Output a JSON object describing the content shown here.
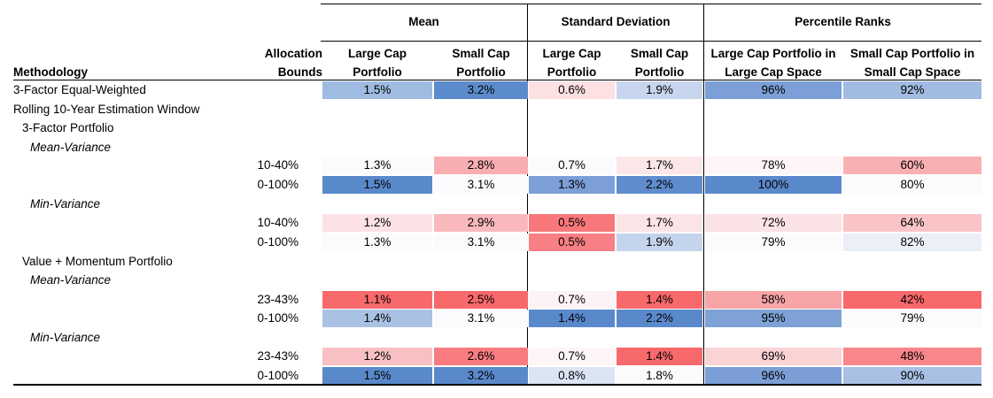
{
  "header": {
    "groups": [
      {
        "id": "mean",
        "label": "Mean"
      },
      {
        "id": "sd",
        "label": "Standard Deviation"
      },
      {
        "id": "pr",
        "label": "Percentile Ranks"
      }
    ],
    "methodology": "Methodology",
    "bounds_line1": "Allocation",
    "bounds_line2": "Bounds",
    "columns": [
      {
        "line1": "Large Cap",
        "line2": "Portfolio"
      },
      {
        "line1": "Small Cap",
        "line2": "Portfolio"
      },
      {
        "line1": "Large Cap",
        "line2": "Portfolio"
      },
      {
        "line1": "Small Cap",
        "line2": "Portfolio"
      },
      {
        "line1": "Large Cap Portfolio in",
        "line2": "Large Cap Space"
      },
      {
        "line1": "Small Cap Portfolio in",
        "line2": "Small Cap Space"
      }
    ]
  },
  "rows": [
    {
      "type": "data",
      "label": "3-Factor Equal-Weighted",
      "indent": 0,
      "bounds": "",
      "values": [
        "1.5%",
        "3.2%",
        "0.6%",
        "1.9%",
        "96%",
        "92%"
      ],
      "colors": [
        "#9fbbe1",
        "#5c8bcc",
        "#fce0e2",
        "#c7d6ee",
        "#7b9fd6",
        "#a1bbe2"
      ]
    },
    {
      "type": "label",
      "label": "Rolling 10-Year Estimation Window",
      "indent": 0,
      "italic": false
    },
    {
      "type": "label",
      "label": "3-Factor Portfolio",
      "indent": 1,
      "italic": false
    },
    {
      "type": "label",
      "label": "Mean-Variance",
      "indent": 2,
      "italic": true
    },
    {
      "type": "data",
      "label": "",
      "indent": 0,
      "bounds": "10-40%",
      "values": [
        "1.3%",
        "2.8%",
        "0.7%",
        "1.7%",
        "78%",
        "60%"
      ],
      "colors": [
        "#fafbfd",
        "#f8aeb1",
        "#fbfbfd",
        "#fbe6e8",
        "#fdf5f6",
        "#f8b0b3"
      ]
    },
    {
      "type": "data",
      "label": "",
      "indent": 0,
      "bounds": "0-100%",
      "values": [
        "1.5%",
        "3.1%",
        "1.3%",
        "2.2%",
        "100%",
        "80%"
      ],
      "colors": [
        "#5a89cb",
        "#fbfbfd",
        "#7b9fd6",
        "#5e8ccc",
        "#5a89cb",
        "#fbfbfd"
      ]
    },
    {
      "type": "label",
      "label": "Min-Variance",
      "indent": 2,
      "italic": true
    },
    {
      "type": "data",
      "label": "",
      "indent": 0,
      "bounds": "10-40%",
      "values": [
        "1.2%",
        "2.9%",
        "0.5%",
        "1.7%",
        "72%",
        "64%"
      ],
      "colors": [
        "#fce2e4",
        "#f9b9bc",
        "#f7777b",
        "#fbe4e6",
        "#fbe2e4",
        "#fac4c7"
      ]
    },
    {
      "type": "data",
      "label": "",
      "indent": 0,
      "bounds": "0-100%",
      "values": [
        "1.3%",
        "3.1%",
        "0.5%",
        "1.9%",
        "79%",
        "82%"
      ],
      "colors": [
        "#fbfbfd",
        "#fbfbfd",
        "#f87f83",
        "#c5d4ed",
        "#fbfbfd",
        "#eaeff8"
      ]
    },
    {
      "type": "label",
      "label": "Value + Momentum Portfolio",
      "indent": 1,
      "italic": false
    },
    {
      "type": "label",
      "label": "Mean-Variance",
      "indent": 2,
      "italic": true
    },
    {
      "type": "data",
      "label": "",
      "indent": 0,
      "bounds": "23-43%",
      "values": [
        "1.1%",
        "2.5%",
        "0.7%",
        "1.4%",
        "58%",
        "42%"
      ],
      "colors": [
        "#f8696b",
        "#f8696b",
        "#fdf3f4",
        "#f8696b",
        "#f8a5a8",
        "#f8696b"
      ]
    },
    {
      "type": "data",
      "label": "",
      "indent": 0,
      "bounds": "0-100%",
      "values": [
        "1.4%",
        "3.1%",
        "1.4%",
        "2.2%",
        "95%",
        "79%"
      ],
      "colors": [
        "#a9c2e4",
        "#fbfbfd",
        "#5a89cb",
        "#5a89cb",
        "#7ea1d6",
        "#fbfbfd"
      ]
    },
    {
      "type": "label",
      "label": "Min-Variance",
      "indent": 2,
      "italic": true
    },
    {
      "type": "data",
      "label": "",
      "indent": 0,
      "bounds": "23-43%",
      "values": [
        "1.2%",
        "2.6%",
        "0.7%",
        "1.4%",
        "69%",
        "48%"
      ],
      "colors": [
        "#f9c0c3",
        "#f87c80",
        "#fdf5f6",
        "#f8696b",
        "#fad3d5",
        "#f8868a"
      ]
    },
    {
      "type": "data",
      "label": "",
      "indent": 0,
      "bounds": "0-100%",
      "values": [
        "1.5%",
        "3.2%",
        "0.8%",
        "1.8%",
        "96%",
        "90%"
      ],
      "colors": [
        "#5a89cb",
        "#5a89cb",
        "#dce5f4",
        "#fbfbfd",
        "#7b9fd6",
        "#a7c0e3"
      ]
    }
  ]
}
